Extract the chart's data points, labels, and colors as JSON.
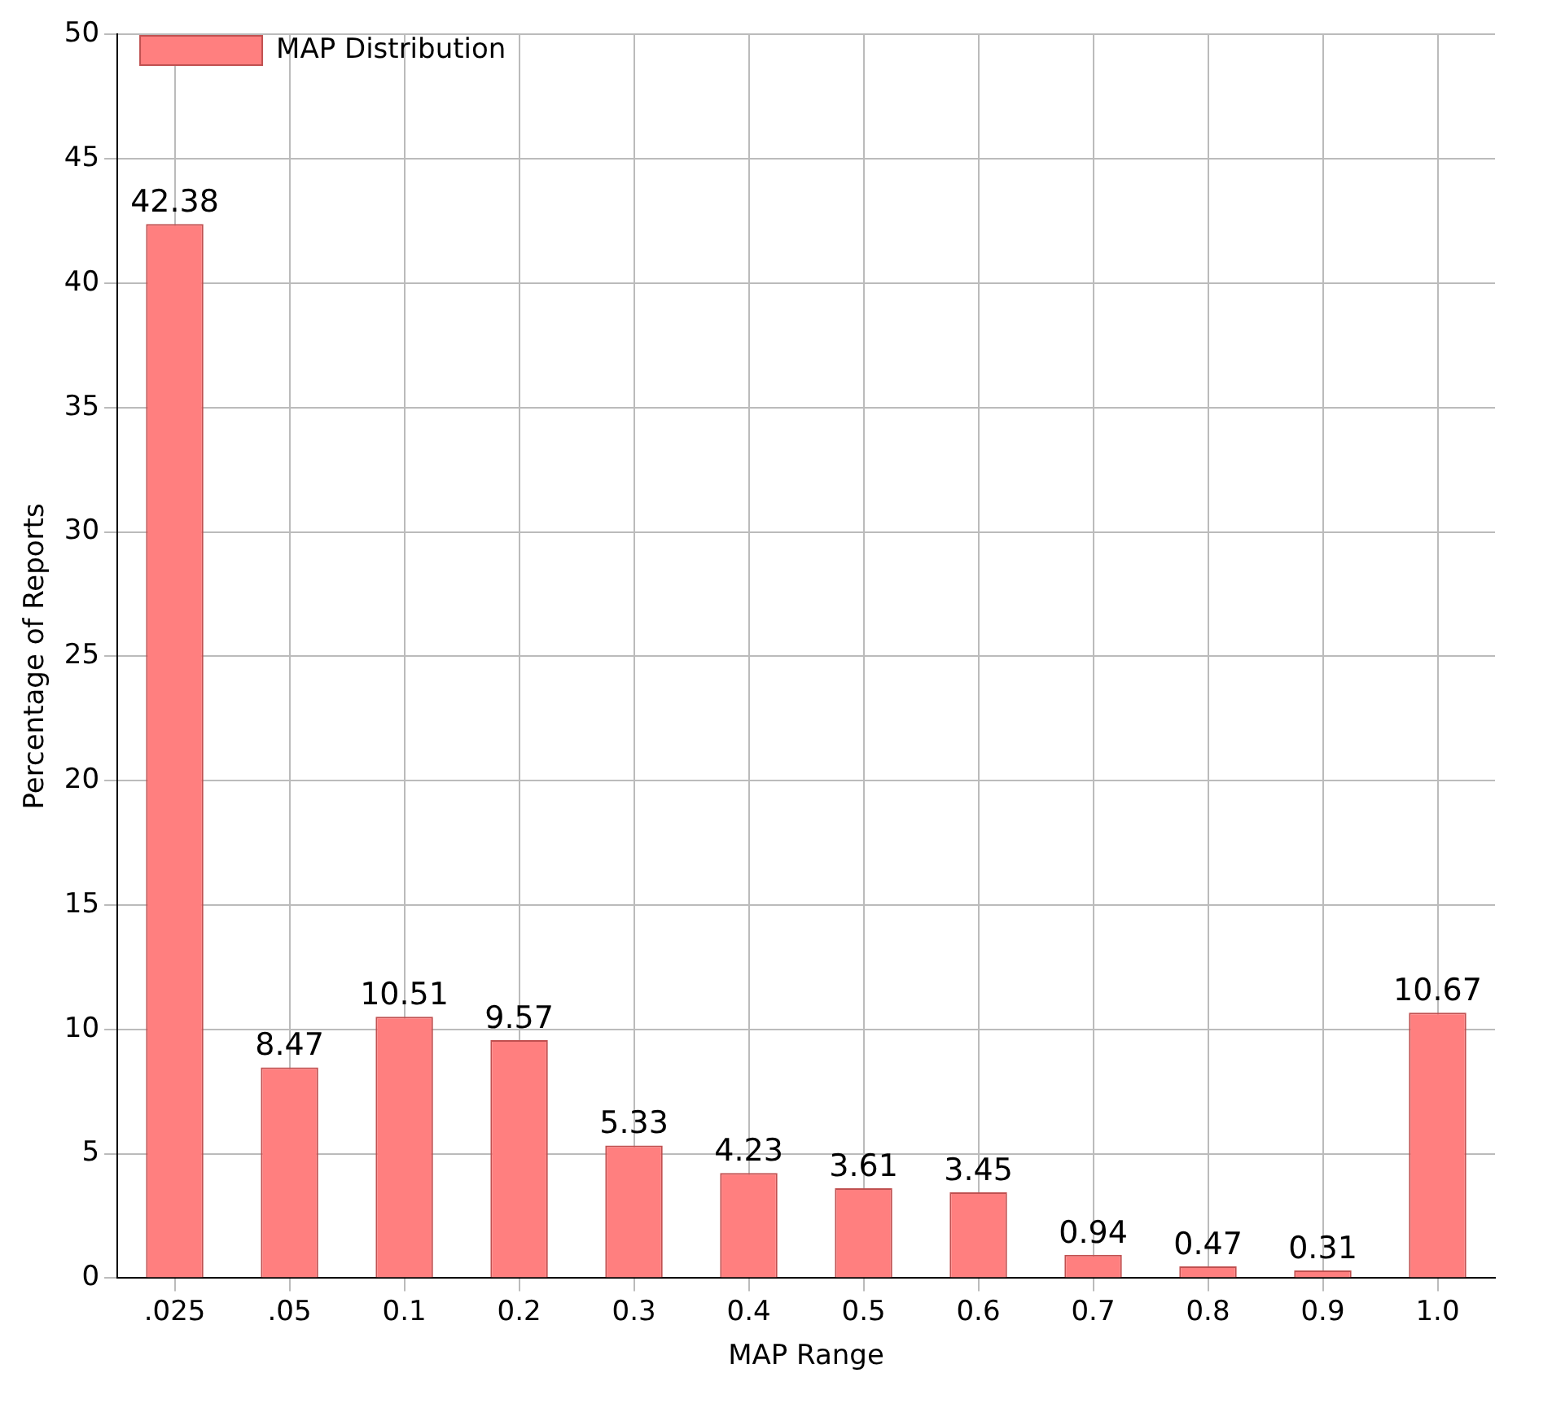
{
  "chart_data": {
    "type": "bar",
    "xlabel": "MAP Range",
    "ylabel": "Percentage of Reports",
    "categories": [
      ".025",
      ".05",
      "0.1",
      "0.2",
      "0.3",
      "0.4",
      "0.5",
      "0.6",
      "0.7",
      "0.8",
      "0.9",
      "1.0"
    ],
    "series": [
      {
        "name": "MAP Distribution",
        "color": "#ff7f7f",
        "values": [
          42.38,
          8.47,
          10.51,
          9.57,
          5.33,
          4.23,
          3.61,
          3.45,
          0.94,
          0.47,
          0.31,
          10.67
        ]
      }
    ],
    "ylim": [
      0,
      50
    ],
    "yticks": [
      0,
      5,
      10,
      15,
      20,
      25,
      30,
      35,
      40,
      45,
      50
    ],
    "grid": true,
    "legend": "top left",
    "data_labels": true
  }
}
